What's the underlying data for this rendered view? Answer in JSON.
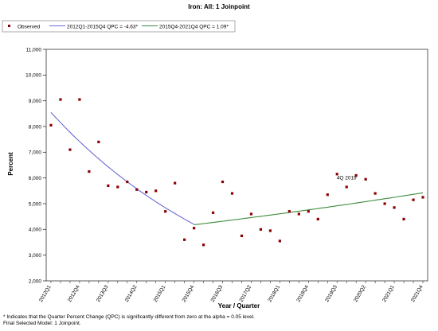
{
  "chart_data": {
    "type": "scatter",
    "title": "Iron: All: 1 Joinpoint",
    "xlabel": "Year / Quarter",
    "ylabel": "Percent",
    "ylim": [
      2000,
      11000
    ],
    "yticks": [
      "2,000",
      "3,000",
      "4,000",
      "5,000",
      "6,000",
      "7,000",
      "8,000",
      "9,000",
      "10,000",
      "11,000"
    ],
    "ytick_values": [
      2000,
      3000,
      4000,
      5000,
      6000,
      7000,
      8000,
      9000,
      10000,
      11000
    ],
    "grid": false,
    "legend_position": "top",
    "x_categories": [
      "2012Q1",
      "2012Q2",
      "2012Q3",
      "2012Q4",
      "2013Q1",
      "2013Q2",
      "2013Q3",
      "2013Q4",
      "2014Q1",
      "2014Q2",
      "2014Q3",
      "2014Q4",
      "2015Q1",
      "2015Q2",
      "2015Q3",
      "2015Q4",
      "2016Q1",
      "2016Q2",
      "2016Q3",
      "2016Q4",
      "2017Q1",
      "2017Q2",
      "2017Q3",
      "2017Q4",
      "2018Q1",
      "2018Q2",
      "2018Q3",
      "2018Q4",
      "2019Q1",
      "2019Q2",
      "2019Q3",
      "2019Q4",
      "2020Q1",
      "2020Q2",
      "2020Q3",
      "2020Q4",
      "2021Q1",
      "2021Q2",
      "2021Q3",
      "2021Q4"
    ],
    "x_tick_labels": [
      {
        "label": "2012Q1",
        "index": 0
      },
      {
        "label": "2012Q4",
        "index": 3
      },
      {
        "label": "2013Q3",
        "index": 6
      },
      {
        "label": "2014Q2",
        "index": 9
      },
      {
        "label": "2015Q1",
        "index": 12
      },
      {
        "label": "2015Q4",
        "index": 15
      },
      {
        "label": "2016Q3",
        "index": 18
      },
      {
        "label": "2017Q2",
        "index": 21
      },
      {
        "label": "2018Q1",
        "index": 24
      },
      {
        "label": "2018Q4",
        "index": 27
      },
      {
        "label": "2019Q3",
        "index": 30
      },
      {
        "label": "2020Q2",
        "index": 33
      },
      {
        "label": "2021Q1",
        "index": 36
      },
      {
        "label": "2021Q4",
        "index": 39
      }
    ],
    "series": [
      {
        "name": "Observed",
        "kind": "markers",
        "color": "#8b0000",
        "values": [
          8050,
          9050,
          7100,
          9050,
          6250,
          7400,
          5700,
          5650,
          5850,
          5550,
          5450,
          5500,
          4700,
          5800,
          3600,
          4050,
          3400,
          4650,
          5850,
          5400,
          3750,
          4600,
          4000,
          3950,
          3550,
          4700,
          4600,
          4700,
          4400,
          5350,
          6150,
          5650,
          6100,
          5950,
          5400,
          5000,
          4850,
          4400,
          5150,
          5250
        ]
      },
      {
        "name": "2012Q1-2015Q4 QPC = -4.63*",
        "kind": "line",
        "color": "#6b6bd6",
        "segment": [
          0,
          15
        ],
        "start_value": 8550,
        "qpc_percent": -4.63
      },
      {
        "name": "2015Q4-2021Q4 QPC = 1.09*",
        "kind": "line",
        "color": "#3d8c3d",
        "segment": [
          15,
          39
        ],
        "start_value": 4180,
        "qpc_percent": 1.09
      }
    ],
    "annotations": [
      {
        "text": "4Q 2019",
        "index": 31,
        "value": 6100
      }
    ]
  },
  "footnotes": {
    "line1": "* Indicates that the Quarter Percent Change (QPC) is significantly different from zero at the alpha = 0.05 level.",
    "line2": "Final Selected Model: 1 Joinpoint."
  }
}
